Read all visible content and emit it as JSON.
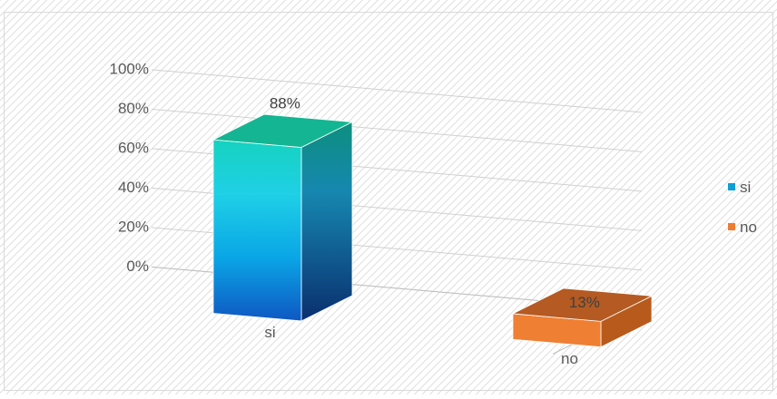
{
  "chart_data": {
    "type": "bar",
    "categories": [
      "si",
      "no"
    ],
    "values": [
      88,
      13
    ],
    "data_labels": [
      "88%",
      "13%"
    ],
    "y_tick_labels": [
      "0%",
      "20%",
      "40%",
      "60%",
      "80%",
      "100%"
    ],
    "ylim": [
      0,
      100
    ],
    "grid": true,
    "legend_position": "right",
    "legend": [
      {
        "label": "si",
        "color": "#0e9fd6"
      },
      {
        "label": "no",
        "color": "#ed7d31"
      }
    ],
    "title": "",
    "xlabel": "",
    "ylabel": ""
  }
}
